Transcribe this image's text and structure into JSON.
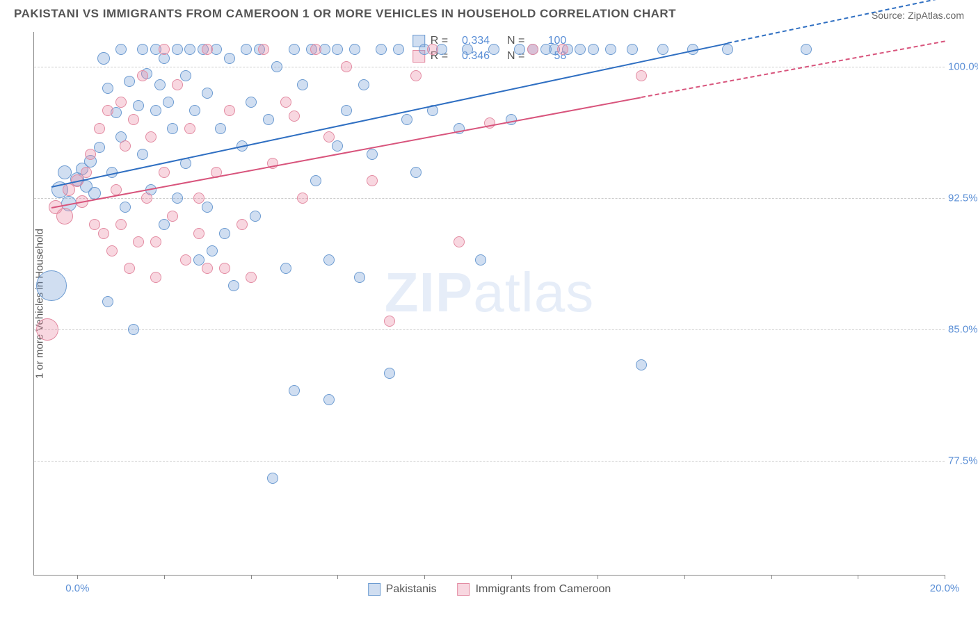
{
  "header": {
    "title": "PAKISTANI VS IMMIGRANTS FROM CAMEROON 1 OR MORE VEHICLES IN HOUSEHOLD CORRELATION CHART",
    "source": "Source: ZipAtlas.com"
  },
  "chart": {
    "type": "scatter",
    "ylabel": "1 or more Vehicles in Household",
    "watermark_bold": "ZIP",
    "watermark_rest": "atlas",
    "background_color": "#ffffff",
    "grid_color": "#cccccc",
    "axis_color": "#888888",
    "tick_label_color": "#5b8fd6",
    "xlim": [
      -1.0,
      20.0
    ],
    "ylim": [
      71.0,
      102.0
    ],
    "yticks": [
      77.5,
      85.0,
      92.5,
      100.0
    ],
    "ytick_labels": [
      "77.5%",
      "85.0%",
      "92.5%",
      "100.0%"
    ],
    "xticks": [
      0.0,
      2.0,
      4.0,
      6.0,
      8.0,
      10.0,
      12.0,
      14.0,
      16.0,
      18.0,
      20.0
    ],
    "xtick_labels_shown": {
      "0": "0.0%",
      "10": "20.0%"
    },
    "series": [
      {
        "name": "Pakistanis",
        "fill": "rgba(120,160,215,0.35)",
        "stroke": "#6c9bd1",
        "trend_color": "#2f6fc2",
        "R": "0.334",
        "N": "100",
        "trend": {
          "x1": -0.6,
          "y1": 93.2,
          "x2": 15.0,
          "y2": 101.4,
          "dash_to_x": 20.0,
          "dash_to_y": 104.0
        },
        "points": [
          {
            "x": -0.6,
            "y": 87.5,
            "r": 22
          },
          {
            "x": -0.4,
            "y": 93.0,
            "r": 12
          },
          {
            "x": -0.3,
            "y": 94.0,
            "r": 10
          },
          {
            "x": -0.2,
            "y": 92.2,
            "r": 11
          },
          {
            "x": 0.0,
            "y": 93.6,
            "r": 10
          },
          {
            "x": 0.1,
            "y": 94.2,
            "r": 9
          },
          {
            "x": 0.2,
            "y": 93.2,
            "r": 9
          },
          {
            "x": 0.3,
            "y": 94.6,
            "r": 9
          },
          {
            "x": 0.4,
            "y": 92.8,
            "r": 9
          },
          {
            "x": 0.5,
            "y": 95.4,
            "r": 8
          },
          {
            "x": 0.6,
            "y": 100.5,
            "r": 9
          },
          {
            "x": 0.7,
            "y": 98.8,
            "r": 8
          },
          {
            "x": 0.7,
            "y": 86.6,
            "r": 8
          },
          {
            "x": 0.8,
            "y": 94.0,
            "r": 8
          },
          {
            "x": 0.9,
            "y": 97.4,
            "r": 8
          },
          {
            "x": 1.0,
            "y": 96.0,
            "r": 8
          },
          {
            "x": 1.0,
            "y": 101.0,
            "r": 8
          },
          {
            "x": 1.1,
            "y": 92.0,
            "r": 8
          },
          {
            "x": 1.2,
            "y": 99.2,
            "r": 8
          },
          {
            "x": 1.3,
            "y": 85.0,
            "r": 8
          },
          {
            "x": 1.4,
            "y": 97.8,
            "r": 8
          },
          {
            "x": 1.5,
            "y": 101.0,
            "r": 8
          },
          {
            "x": 1.5,
            "y": 95.0,
            "r": 8
          },
          {
            "x": 1.6,
            "y": 99.6,
            "r": 8
          },
          {
            "x": 1.7,
            "y": 93.0,
            "r": 8
          },
          {
            "x": 1.8,
            "y": 101.0,
            "r": 8
          },
          {
            "x": 1.8,
            "y": 97.5,
            "r": 8
          },
          {
            "x": 1.9,
            "y": 99.0,
            "r": 8
          },
          {
            "x": 2.0,
            "y": 91.0,
            "r": 8
          },
          {
            "x": 2.0,
            "y": 100.5,
            "r": 8
          },
          {
            "x": 2.1,
            "y": 98.0,
            "r": 8
          },
          {
            "x": 2.2,
            "y": 96.5,
            "r": 8
          },
          {
            "x": 2.3,
            "y": 101.0,
            "r": 8
          },
          {
            "x": 2.3,
            "y": 92.5,
            "r": 8
          },
          {
            "x": 2.5,
            "y": 99.5,
            "r": 8
          },
          {
            "x": 2.5,
            "y": 94.5,
            "r": 8
          },
          {
            "x": 2.6,
            "y": 101.0,
            "r": 8
          },
          {
            "x": 2.7,
            "y": 97.5,
            "r": 8
          },
          {
            "x": 2.8,
            "y": 89.0,
            "r": 8
          },
          {
            "x": 2.9,
            "y": 101.0,
            "r": 8
          },
          {
            "x": 3.0,
            "y": 98.5,
            "r": 8
          },
          {
            "x": 3.0,
            "y": 92.0,
            "r": 8
          },
          {
            "x": 3.1,
            "y": 89.5,
            "r": 8
          },
          {
            "x": 3.2,
            "y": 101.0,
            "r": 8
          },
          {
            "x": 3.3,
            "y": 96.5,
            "r": 8
          },
          {
            "x": 3.4,
            "y": 90.5,
            "r": 8
          },
          {
            "x": 3.5,
            "y": 100.5,
            "r": 8
          },
          {
            "x": 3.6,
            "y": 87.5,
            "r": 8
          },
          {
            "x": 3.8,
            "y": 95.5,
            "r": 8
          },
          {
            "x": 3.9,
            "y": 101.0,
            "r": 8
          },
          {
            "x": 4.0,
            "y": 98.0,
            "r": 8
          },
          {
            "x": 4.1,
            "y": 91.5,
            "r": 8
          },
          {
            "x": 4.2,
            "y": 101.0,
            "r": 8
          },
          {
            "x": 4.4,
            "y": 97.0,
            "r": 8
          },
          {
            "x": 4.5,
            "y": 76.5,
            "r": 8
          },
          {
            "x": 4.6,
            "y": 100.0,
            "r": 8
          },
          {
            "x": 4.8,
            "y": 88.5,
            "r": 8
          },
          {
            "x": 5.0,
            "y": 81.5,
            "r": 8
          },
          {
            "x": 5.0,
            "y": 101.0,
            "r": 8
          },
          {
            "x": 5.2,
            "y": 99.0,
            "r": 8
          },
          {
            "x": 5.4,
            "y": 101.0,
            "r": 8
          },
          {
            "x": 5.5,
            "y": 93.5,
            "r": 8
          },
          {
            "x": 5.7,
            "y": 101.0,
            "r": 8
          },
          {
            "x": 5.8,
            "y": 89.0,
            "r": 8
          },
          {
            "x": 5.8,
            "y": 81.0,
            "r": 8
          },
          {
            "x": 6.0,
            "y": 101.0,
            "r": 8
          },
          {
            "x": 6.0,
            "y": 95.5,
            "r": 8
          },
          {
            "x": 6.2,
            "y": 97.5,
            "r": 8
          },
          {
            "x": 6.4,
            "y": 101.0,
            "r": 8
          },
          {
            "x": 6.5,
            "y": 88.0,
            "r": 8
          },
          {
            "x": 6.6,
            "y": 99.0,
            "r": 8
          },
          {
            "x": 6.8,
            "y": 95.0,
            "r": 8
          },
          {
            "x": 7.0,
            "y": 101.0,
            "r": 8
          },
          {
            "x": 7.2,
            "y": 82.5,
            "r": 8
          },
          {
            "x": 7.4,
            "y": 101.0,
            "r": 8
          },
          {
            "x": 7.6,
            "y": 97.0,
            "r": 8
          },
          {
            "x": 7.8,
            "y": 94.0,
            "r": 8
          },
          {
            "x": 8.0,
            "y": 101.0,
            "r": 8
          },
          {
            "x": 8.2,
            "y": 97.5,
            "r": 8
          },
          {
            "x": 8.4,
            "y": 101.0,
            "r": 8
          },
          {
            "x": 8.8,
            "y": 96.5,
            "r": 8
          },
          {
            "x": 9.0,
            "y": 101.0,
            "r": 8
          },
          {
            "x": 9.3,
            "y": 89.0,
            "r": 8
          },
          {
            "x": 9.6,
            "y": 101.0,
            "r": 8
          },
          {
            "x": 10.0,
            "y": 97.0,
            "r": 8
          },
          {
            "x": 10.2,
            "y": 101.0,
            "r": 8
          },
          {
            "x": 10.5,
            "y": 101.0,
            "r": 8
          },
          {
            "x": 10.8,
            "y": 101.0,
            "r": 8
          },
          {
            "x": 11.0,
            "y": 101.0,
            "r": 8
          },
          {
            "x": 11.3,
            "y": 101.0,
            "r": 8
          },
          {
            "x": 11.6,
            "y": 101.0,
            "r": 8
          },
          {
            "x": 11.9,
            "y": 101.0,
            "r": 8
          },
          {
            "x": 12.3,
            "y": 101.0,
            "r": 8
          },
          {
            "x": 12.8,
            "y": 101.0,
            "r": 8
          },
          {
            "x": 13.0,
            "y": 83.0,
            "r": 8
          },
          {
            "x": 13.5,
            "y": 101.0,
            "r": 8
          },
          {
            "x": 14.2,
            "y": 101.0,
            "r": 8
          },
          {
            "x": 15.0,
            "y": 101.0,
            "r": 8
          },
          {
            "x": 16.8,
            "y": 101.0,
            "r": 8
          }
        ]
      },
      {
        "name": "Immigrants from Cameroon",
        "fill": "rgba(235,140,165,0.35)",
        "stroke": "#e38ba2",
        "trend_color": "#d8547c",
        "R": "0.346",
        "N": "58",
        "trend": {
          "x1": -0.6,
          "y1": 92.0,
          "x2": 13.0,
          "y2": 98.3,
          "dash_to_x": 20.0,
          "dash_to_y": 101.5
        },
        "points": [
          {
            "x": -0.7,
            "y": 85.0,
            "r": 16
          },
          {
            "x": -0.5,
            "y": 92.0,
            "r": 10
          },
          {
            "x": -0.3,
            "y": 91.5,
            "r": 12
          },
          {
            "x": -0.2,
            "y": 93.0,
            "r": 9
          },
          {
            "x": 0.0,
            "y": 93.5,
            "r": 9
          },
          {
            "x": 0.1,
            "y": 92.3,
            "r": 9
          },
          {
            "x": 0.2,
            "y": 94.0,
            "r": 8
          },
          {
            "x": 0.3,
            "y": 95.0,
            "r": 8
          },
          {
            "x": 0.4,
            "y": 91.0,
            "r": 8
          },
          {
            "x": 0.5,
            "y": 96.5,
            "r": 8
          },
          {
            "x": 0.6,
            "y": 90.5,
            "r": 8
          },
          {
            "x": 0.7,
            "y": 97.5,
            "r": 8
          },
          {
            "x": 0.8,
            "y": 89.5,
            "r": 8
          },
          {
            "x": 0.9,
            "y": 93.0,
            "r": 8
          },
          {
            "x": 1.0,
            "y": 98.0,
            "r": 8
          },
          {
            "x": 1.0,
            "y": 91.0,
            "r": 8
          },
          {
            "x": 1.1,
            "y": 95.5,
            "r": 8
          },
          {
            "x": 1.2,
            "y": 88.5,
            "r": 8
          },
          {
            "x": 1.3,
            "y": 97.0,
            "r": 8
          },
          {
            "x": 1.4,
            "y": 90.0,
            "r": 8
          },
          {
            "x": 1.5,
            "y": 99.5,
            "r": 8
          },
          {
            "x": 1.6,
            "y": 92.5,
            "r": 8
          },
          {
            "x": 1.7,
            "y": 96.0,
            "r": 8
          },
          {
            "x": 1.8,
            "y": 90.0,
            "r": 8
          },
          {
            "x": 1.8,
            "y": 88.0,
            "r": 8
          },
          {
            "x": 2.0,
            "y": 101.0,
            "r": 8
          },
          {
            "x": 2.0,
            "y": 94.0,
            "r": 8
          },
          {
            "x": 2.2,
            "y": 91.5,
            "r": 8
          },
          {
            "x": 2.3,
            "y": 99.0,
            "r": 8
          },
          {
            "x": 2.5,
            "y": 89.0,
            "r": 8
          },
          {
            "x": 2.6,
            "y": 96.5,
            "r": 8
          },
          {
            "x": 2.8,
            "y": 92.5,
            "r": 8
          },
          {
            "x": 2.8,
            "y": 90.5,
            "r": 8
          },
          {
            "x": 3.0,
            "y": 88.5,
            "r": 8
          },
          {
            "x": 3.0,
            "y": 101.0,
            "r": 8
          },
          {
            "x": 3.2,
            "y": 94.0,
            "r": 8
          },
          {
            "x": 3.4,
            "y": 88.5,
            "r": 8
          },
          {
            "x": 3.5,
            "y": 97.5,
            "r": 8
          },
          {
            "x": 3.8,
            "y": 91.0,
            "r": 8
          },
          {
            "x": 4.0,
            "y": 88.0,
            "r": 8
          },
          {
            "x": 4.3,
            "y": 101.0,
            "r": 8
          },
          {
            "x": 4.5,
            "y": 94.5,
            "r": 8
          },
          {
            "x": 4.8,
            "y": 98.0,
            "r": 8
          },
          {
            "x": 5.0,
            "y": 97.2,
            "r": 8
          },
          {
            "x": 5.2,
            "y": 92.5,
            "r": 8
          },
          {
            "x": 5.5,
            "y": 101.0,
            "r": 8
          },
          {
            "x": 5.8,
            "y": 96.0,
            "r": 8
          },
          {
            "x": 6.2,
            "y": 100.0,
            "r": 8
          },
          {
            "x": 6.8,
            "y": 93.5,
            "r": 8
          },
          {
            "x": 7.2,
            "y": 85.5,
            "r": 8
          },
          {
            "x": 7.8,
            "y": 99.5,
            "r": 8
          },
          {
            "x": 8.2,
            "y": 101.0,
            "r": 8
          },
          {
            "x": 8.8,
            "y": 90.0,
            "r": 8
          },
          {
            "x": 9.5,
            "y": 96.8,
            "r": 8
          },
          {
            "x": 10.5,
            "y": 101.0,
            "r": 8
          },
          {
            "x": 11.2,
            "y": 101.0,
            "r": 8
          },
          {
            "x": 13.0,
            "y": 99.5,
            "r": 8
          }
        ]
      }
    ],
    "legend_top_labels": {
      "R": "R =",
      "N": "N ="
    },
    "legend_bottom": [
      "Pakistanis",
      "Immigrants from Cameroon"
    ]
  }
}
